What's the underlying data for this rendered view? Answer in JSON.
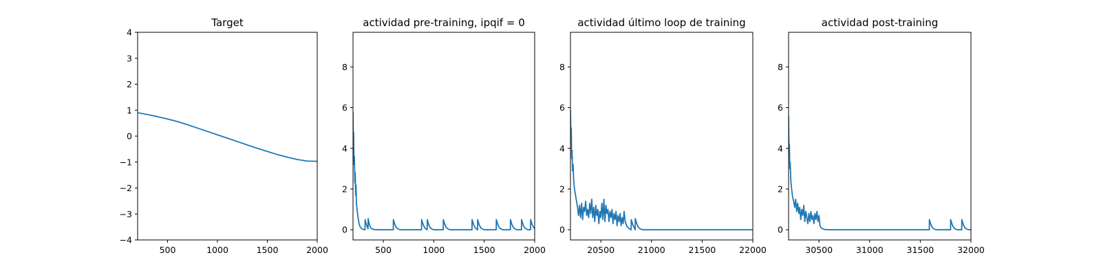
{
  "colors": {
    "line": "#1f77b4",
    "axes": "#000000",
    "background": "#ffffff"
  },
  "chart_data": [
    {
      "type": "line",
      "title": "Target",
      "xlabel": "",
      "ylabel": "",
      "xlim": [
        200,
        2000
      ],
      "ylim": [
        -4,
        4
      ],
      "xticks": [
        500,
        1000,
        1500,
        2000
      ],
      "yticks": [
        -4,
        -3,
        -2,
        -1,
        0,
        1,
        2,
        3,
        4
      ],
      "grid": false,
      "series": [
        {
          "x": [
            200,
            300,
            400,
            500,
            600,
            700,
            800,
            900,
            1000,
            1100,
            1200,
            1300,
            1400,
            1500,
            1600,
            1700,
            1800,
            1900,
            2000
          ],
          "y": [
            0.9,
            0.83,
            0.75,
            0.66,
            0.56,
            0.44,
            0.31,
            0.18,
            0.05,
            -0.08,
            -0.21,
            -0.34,
            -0.47,
            -0.59,
            -0.71,
            -0.81,
            -0.9,
            -0.96,
            -0.97
          ]
        }
      ]
    },
    {
      "type": "line",
      "title": "actividad pre-training, ipqif = 0",
      "xlabel": "",
      "ylabel": "",
      "xlim": [
        200,
        2000
      ],
      "ylim": [
        -0.5,
        9.7
      ],
      "xticks": [
        500,
        1000,
        1500,
        2000
      ],
      "yticks": [
        0,
        2,
        4,
        6,
        8
      ],
      "grid": false,
      "series": [
        {
          "x": [
            200,
            203,
            206,
            210,
            214,
            218,
            222,
            226,
            230,
            234,
            240,
            250,
            260,
            270,
            285,
            300,
            310,
            319,
            320,
            330,
            340,
            349,
            350,
            360,
            370,
            380,
            400,
            450,
            599,
            600,
            615,
            630,
            650,
            670,
            879,
            880,
            895,
            910,
            925,
            935,
            936,
            950,
            965,
            980,
            1000,
            1094,
            1095,
            1110,
            1125,
            1145,
            1160,
            1379,
            1380,
            1395,
            1410,
            1425,
            1434,
            1435,
            1450,
            1465,
            1485,
            1500,
            1619,
            1620,
            1635,
            1650,
            1670,
            1685,
            1759,
            1760,
            1775,
            1790,
            1810,
            1825,
            1869,
            1870,
            1885,
            1900,
            1920,
            1935,
            1959,
            1960,
            1975,
            1990,
            2000
          ],
          "y": [
            5.8,
            4.2,
            4.8,
            3.2,
            3.6,
            2.3,
            2.8,
            1.7,
            2.2,
            1.3,
            1.0,
            0.6,
            0.3,
            0.15,
            0.05,
            0.02,
            0.01,
            0.0,
            0.5,
            0.3,
            0.15,
            0.05,
            0.55,
            0.3,
            0.15,
            0.07,
            0.02,
            0.0,
            0.0,
            0.5,
            0.25,
            0.1,
            0.03,
            0.0,
            0.0,
            0.5,
            0.25,
            0.1,
            0.03,
            0.0,
            0.5,
            0.25,
            0.1,
            0.04,
            0.0,
            0.0,
            0.5,
            0.25,
            0.1,
            0.03,
            0.0,
            0.0,
            0.5,
            0.25,
            0.1,
            0.03,
            0.0,
            0.5,
            0.25,
            0.1,
            0.03,
            0.0,
            0.0,
            0.5,
            0.25,
            0.1,
            0.03,
            0.0,
            0.0,
            0.5,
            0.25,
            0.1,
            0.03,
            0.0,
            0.0,
            0.5,
            0.25,
            0.1,
            0.03,
            0.0,
            0.0,
            0.5,
            0.25,
            0.12,
            0.05
          ]
        }
      ]
    },
    {
      "type": "line",
      "title": "actividad último loop de training",
      "xlabel": "",
      "ylabel": "",
      "xlim": [
        20200,
        22000
      ],
      "ylim": [
        -0.5,
        9.7
      ],
      "xticks": [
        20500,
        21000,
        21500,
        22000
      ],
      "yticks": [
        0,
        2,
        4,
        6,
        8
      ],
      "grid": false,
      "series": [
        {
          "x": [
            20200,
            20204,
            20208,
            20212,
            20216,
            20220,
            20226,
            20232,
            20240,
            20250,
            20260,
            20270,
            20280,
            20290,
            20300,
            20310,
            20320,
            20330,
            20340,
            20350,
            20360,
            20370,
            20380,
            20390,
            20400,
            20410,
            20420,
            20430,
            20440,
            20450,
            20460,
            20470,
            20480,
            20490,
            20500,
            20510,
            20520,
            20530,
            20540,
            20550,
            20560,
            20570,
            20580,
            20590,
            20600,
            20610,
            20620,
            20630,
            20640,
            20650,
            20660,
            20670,
            20680,
            20690,
            20700,
            20710,
            20720,
            20730,
            20740,
            20760,
            20780,
            20799,
            20800,
            20815,
            20830,
            20839,
            20840,
            20855,
            20870,
            20890,
            20920,
            22000
          ],
          "y": [
            5.9,
            4.5,
            5.0,
            3.5,
            3.9,
            2.9,
            3.2,
            2.4,
            2.0,
            1.7,
            1.4,
            1.1,
            0.7,
            1.2,
            0.6,
            1.3,
            0.5,
            1.1,
            0.9,
            1.4,
            0.7,
            1.0,
            0.6,
            1.3,
            0.8,
            1.5,
            0.6,
            1.1,
            0.4,
            1.2,
            0.7,
            1.0,
            0.3,
            0.9,
            0.6,
            1.3,
            0.5,
            1.5,
            0.4,
            1.2,
            0.8,
            1.0,
            0.4,
            0.9,
            0.6,
            1.0,
            0.3,
            0.8,
            0.5,
            0.9,
            0.2,
            0.7,
            0.4,
            0.8,
            0.2,
            0.6,
            0.3,
            0.9,
            0.4,
            0.15,
            0.05,
            0.0,
            0.5,
            0.25,
            0.1,
            0.0,
            0.55,
            0.3,
            0.12,
            0.04,
            0.0,
            0.0
          ]
        }
      ]
    },
    {
      "type": "line",
      "title": "actividad post-training",
      "xlabel": "",
      "ylabel": "",
      "xlim": [
        30200,
        32000
      ],
      "ylim": [
        -0.5,
        9.7
      ],
      "xticks": [
        30500,
        31000,
        31500,
        32000
      ],
      "yticks": [
        0,
        2,
        4,
        6,
        8
      ],
      "grid": false,
      "series": [
        {
          "x": [
            30200,
            30204,
            30208,
            30212,
            30216,
            30222,
            30230,
            30240,
            30250,
            30260,
            30270,
            30280,
            30290,
            30300,
            30310,
            30320,
            30330,
            30340,
            30350,
            30360,
            30370,
            30380,
            30390,
            30400,
            30410,
            30420,
            30430,
            30440,
            30450,
            30460,
            30470,
            30480,
            30490,
            30500,
            30510,
            30520,
            30540,
            30560,
            30600,
            31589,
            31590,
            31605,
            31620,
            31640,
            31655,
            31799,
            31800,
            31815,
            31830,
            31850,
            31865,
            31909,
            31910,
            31925,
            31940,
            31960,
            31975,
            32000
          ],
          "y": [
            5.6,
            3.8,
            4.2,
            3.0,
            3.3,
            2.4,
            2.0,
            1.6,
            1.4,
            1.1,
            1.5,
            0.9,
            1.3,
            0.8,
            1.1,
            0.5,
            1.0,
            0.7,
            1.2,
            0.4,
            0.9,
            0.6,
            0.3,
            0.8,
            0.4,
            0.9,
            0.5,
            0.7,
            0.3,
            0.8,
            0.5,
            0.9,
            0.4,
            0.7,
            0.2,
            0.1,
            0.04,
            0.01,
            0.0,
            0.0,
            0.5,
            0.25,
            0.1,
            0.03,
            0.0,
            0.0,
            0.5,
            0.25,
            0.1,
            0.03,
            0.0,
            0.0,
            0.5,
            0.25,
            0.1,
            0.03,
            0.0,
            0.0
          ]
        }
      ]
    }
  ]
}
